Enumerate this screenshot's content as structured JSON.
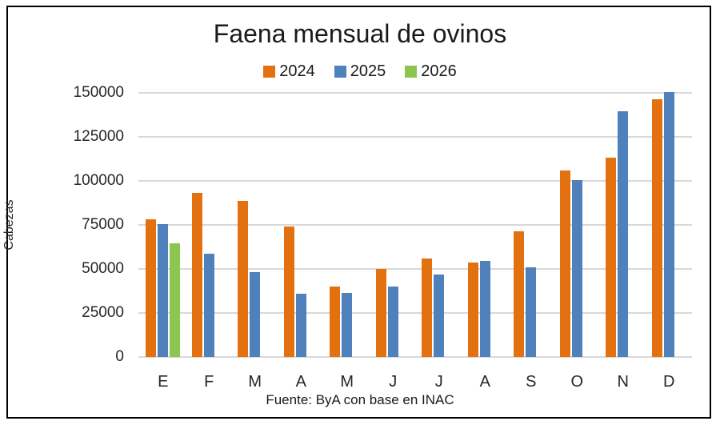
{
  "chart_data": {
    "type": "bar",
    "title": "Faena mensual de ovinos",
    "ylabel": "Cabezas",
    "xlabel": "",
    "source_note": "Fuente: ByA con base en INAC",
    "categories": [
      "E",
      "F",
      "M",
      "A",
      "M",
      "J",
      "J",
      "A",
      "S",
      "O",
      "N",
      "D"
    ],
    "series": [
      {
        "name": "2024",
        "color": "#E4710F",
        "values": [
          78000,
          93000,
          88500,
          74000,
          40000,
          50000,
          56000,
          53500,
          71500,
          106000,
          113000,
          146500
        ]
      },
      {
        "name": "2025",
        "color": "#4F81BD",
        "values": [
          75500,
          58500,
          48000,
          36000,
          36500,
          40000,
          47000,
          54500,
          51000,
          100500,
          139500,
          150500
        ]
      },
      {
        "name": "2026",
        "color": "#8CC650",
        "values": [
          64500,
          null,
          null,
          null,
          null,
          null,
          null,
          null,
          null,
          null,
          null,
          null
        ]
      }
    ],
    "yticks": [
      0,
      25000,
      50000,
      75000,
      100000,
      125000,
      150000
    ],
    "ylim": [
      0,
      150000
    ],
    "grid": "horizontal",
    "legend_position": "top"
  },
  "colors": {
    "gridline": "#D9D9D9",
    "axis_text": "#262626",
    "frame_border": "#000000",
    "background": "#FFFFFF"
  }
}
